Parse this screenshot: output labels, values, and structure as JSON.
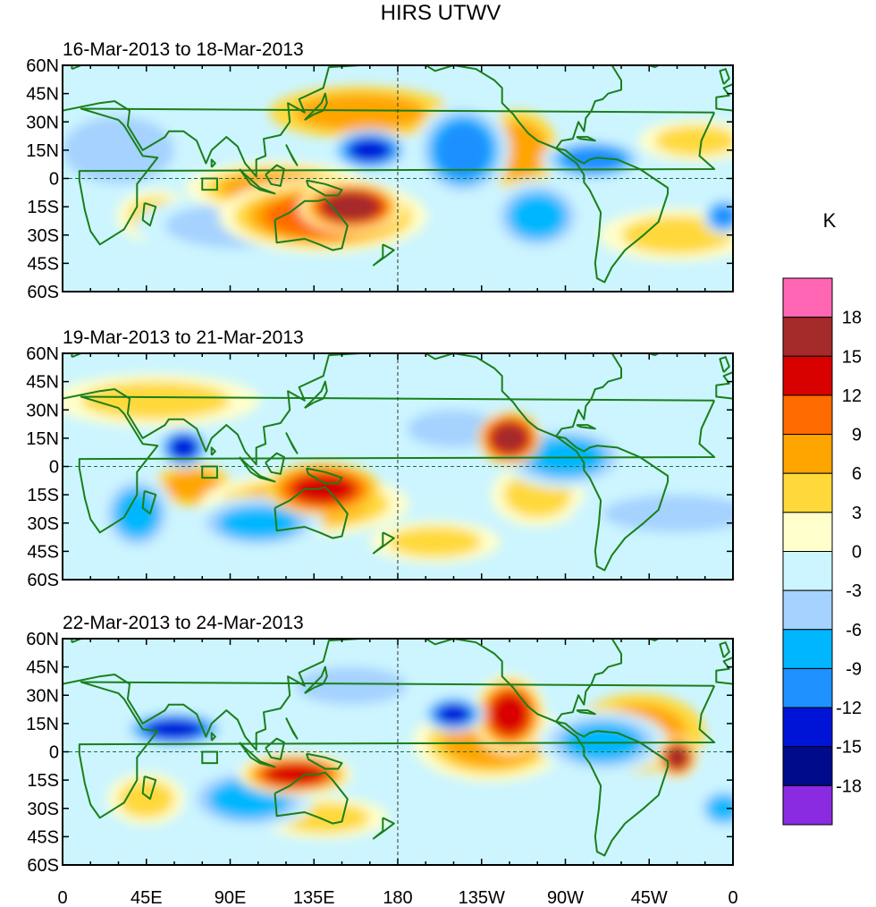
{
  "title": "HIRS UTWV",
  "chart_data": {
    "type": "heatmap",
    "variable": "HIRS UTWV",
    "units": "K",
    "projection": "cylindrical equidistant, 0 to 360 longitude",
    "lat_ticks": [
      "60N",
      "45N",
      "30N",
      "15N",
      "0",
      "15S",
      "30S",
      "45S",
      "60S"
    ],
    "lat_values": [
      60,
      45,
      30,
      15,
      0,
      -15,
      -30,
      -45,
      -60
    ],
    "lon_ticks": [
      "0",
      "45E",
      "90E",
      "135E",
      "180",
      "135W",
      "90W",
      "45W",
      "0"
    ],
    "lon_values": [
      0,
      45,
      90,
      135,
      180,
      225,
      270,
      315,
      360
    ],
    "ylim": [
      -60,
      60
    ],
    "xlim": [
      0,
      360
    ],
    "colorbar": {
      "label": "K",
      "levels": [
        "18",
        "15",
        "12",
        "9",
        "6",
        "3",
        "0",
        "-3",
        "-6",
        "-9",
        "-12",
        "-15",
        "-18"
      ],
      "colors": [
        "#ff66b3",
        "#a52a2a",
        "#d90000",
        "#ff6b00",
        "#ffa500",
        "#ffd93a",
        "#ffffcc",
        "#ccf5ff",
        "#a5d2ff",
        "#00b7ff",
        "#1e90ff",
        "#0014d8",
        "#000b8c",
        "#8a2be2"
      ]
    },
    "panels": [
      {
        "subtitle": "16-Mar-2013 to 18-Mar-2013",
        "anomalies": [
          {
            "lon": 155,
            "lat": -15,
            "value": 17,
            "sx": 20,
            "sy": 10
          },
          {
            "lon": 140,
            "lat": -20,
            "value": 10,
            "sx": 40,
            "sy": 14
          },
          {
            "lon": 115,
            "lat": -5,
            "value": 8,
            "sx": 35,
            "sy": 10
          },
          {
            "lon": 160,
            "lat": 35,
            "value": 6,
            "sx": 35,
            "sy": 10
          },
          {
            "lon": 245,
            "lat": 15,
            "value": 6,
            "sx": 15,
            "sy": 15
          },
          {
            "lon": 340,
            "lat": 20,
            "value": 5,
            "sx": 22,
            "sy": 8
          },
          {
            "lon": 165,
            "lat": 15,
            "value": -15,
            "sx": 15,
            "sy": 8
          },
          {
            "lon": 215,
            "lat": 15,
            "value": -10,
            "sx": 18,
            "sy": 18
          },
          {
            "lon": 285,
            "lat": 10,
            "value": -10,
            "sx": 20,
            "sy": 8
          },
          {
            "lon": 255,
            "lat": -20,
            "value": -9,
            "sx": 18,
            "sy": 14
          },
          {
            "lon": 355,
            "lat": -20,
            "value": -11,
            "sx": 8,
            "sy": 7
          },
          {
            "lon": 95,
            "lat": -25,
            "value": -5,
            "sx": 40,
            "sy": 12
          },
          {
            "lon": 30,
            "lat": 15,
            "value": -4,
            "sx": 30,
            "sy": 18
          },
          {
            "lon": 330,
            "lat": -30,
            "value": 4,
            "sx": 30,
            "sy": 10
          },
          {
            "lon": 50,
            "lat": -20,
            "value": 4,
            "sx": 15,
            "sy": 10
          }
        ]
      },
      {
        "subtitle": "19-Mar-2013 to 21-Mar-2013",
        "anomalies": [
          {
            "lon": 240,
            "lat": 15,
            "value": 15,
            "sx": 12,
            "sy": 10
          },
          {
            "lon": 140,
            "lat": -12,
            "value": 12,
            "sx": 22,
            "sy": 10
          },
          {
            "lon": 130,
            "lat": -20,
            "value": 7,
            "sx": 40,
            "sy": 12
          },
          {
            "lon": 70,
            "lat": -10,
            "value": 6,
            "sx": 15,
            "sy": 8
          },
          {
            "lon": 200,
            "lat": -40,
            "value": 5,
            "sx": 25,
            "sy": 8
          },
          {
            "lon": 255,
            "lat": -15,
            "value": 4,
            "sx": 18,
            "sy": 12
          },
          {
            "lon": 65,
            "lat": 10,
            "value": -14,
            "sx": 10,
            "sy": 8
          },
          {
            "lon": 40,
            "lat": -25,
            "value": -8,
            "sx": 14,
            "sy": 15
          },
          {
            "lon": 270,
            "lat": 5,
            "value": -8,
            "sx": 25,
            "sy": 12
          },
          {
            "lon": 105,
            "lat": -30,
            "value": -7,
            "sx": 25,
            "sy": 10
          },
          {
            "lon": 210,
            "lat": 20,
            "value": -6,
            "sx": 25,
            "sy": 10
          },
          {
            "lon": 330,
            "lat": -25,
            "value": -6,
            "sx": 40,
            "sy": 10
          },
          {
            "lon": 50,
            "lat": 35,
            "value": 4,
            "sx": 40,
            "sy": 10
          }
        ]
      },
      {
        "subtitle": "22-Mar-2013 to 24-Mar-2013",
        "anomalies": [
          {
            "lon": 330,
            "lat": -3,
            "value": 16,
            "sx": 8,
            "sy": 8
          },
          {
            "lon": 240,
            "lat": 20,
            "value": 13,
            "sx": 14,
            "sy": 15
          },
          {
            "lon": 125,
            "lat": -12,
            "value": 13,
            "sx": 22,
            "sy": 8
          },
          {
            "lon": 230,
            "lat": 5,
            "value": 7,
            "sx": 30,
            "sy": 15
          },
          {
            "lon": 310,
            "lat": 10,
            "value": 6,
            "sx": 25,
            "sy": 15
          },
          {
            "lon": 45,
            "lat": -25,
            "value": 5,
            "sx": 15,
            "sy": 10
          },
          {
            "lon": 60,
            "lat": 12,
            "value": -15,
            "sx": 20,
            "sy": 7
          },
          {
            "lon": 100,
            "lat": -25,
            "value": -9,
            "sx": 25,
            "sy": 12
          },
          {
            "lon": 210,
            "lat": 20,
            "value": -14,
            "sx": 12,
            "sy": 7
          },
          {
            "lon": 290,
            "lat": 5,
            "value": -7,
            "sx": 25,
            "sy": 12
          },
          {
            "lon": 155,
            "lat": 35,
            "value": -6,
            "sx": 30,
            "sy": 10
          },
          {
            "lon": 355,
            "lat": -30,
            "value": -7,
            "sx": 10,
            "sy": 8
          },
          {
            "lon": 140,
            "lat": -35,
            "value": 4,
            "sx": 25,
            "sy": 8
          }
        ]
      }
    ]
  }
}
